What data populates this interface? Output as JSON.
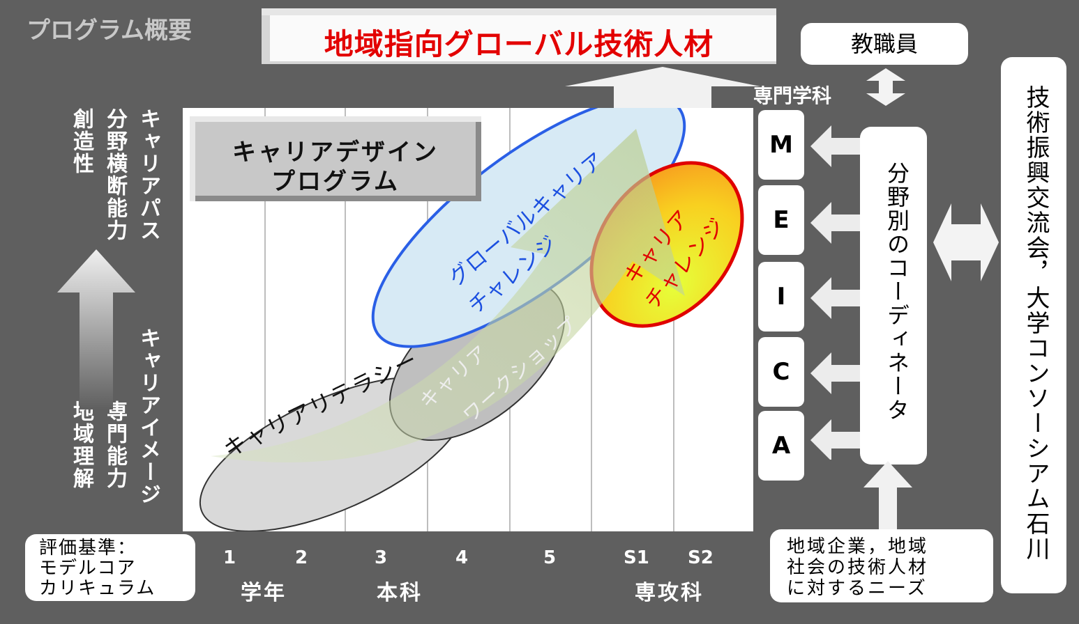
{
  "title": "プログラム概要",
  "banner": "地域指向グローバル技術人材",
  "staff": "教職員",
  "dept_label": "専門学科",
  "departments": [
    "M",
    "E",
    "I",
    "C",
    "A"
  ],
  "coordinator": "分野別のコーディネータ",
  "consortium": "技術振興交流会，大学コンソーシアム石川",
  "needs": [
    "地域企業，地域",
    "社会の技術人材",
    "に対するニーズ"
  ],
  "criteria": [
    "評価基準：",
    "モデルコア",
    "カリキュラム"
  ],
  "left_axis": {
    "top": [
      "キャリアパス",
      "分野横断能力",
      "創造性"
    ],
    "bottom": [
      "キャリアイメージ",
      "専門能力",
      "地域理解"
    ]
  },
  "program_box": [
    "キャリアデザイン",
    "プログラム"
  ],
  "ellipses": {
    "literacy": "キャリアリテラシー",
    "workshop": [
      "キャリア",
      "ワークショップ"
    ],
    "global": [
      "グローバルキャリア",
      "チャレンジ"
    ],
    "challenge": [
      "キャリア",
      "チャレンジ"
    ]
  },
  "x_ticks": [
    "1",
    "2",
    "3",
    "4",
    "5",
    "S1",
    "S2"
  ],
  "x_groups": {
    "grade": "学年",
    "main": "本科",
    "advanced": "専攻科"
  },
  "colors": {
    "banner_text": "#e30000",
    "global_edge": "#2a5fe6",
    "challenge_edge": "#e00000",
    "background": "#5f5f5f"
  }
}
